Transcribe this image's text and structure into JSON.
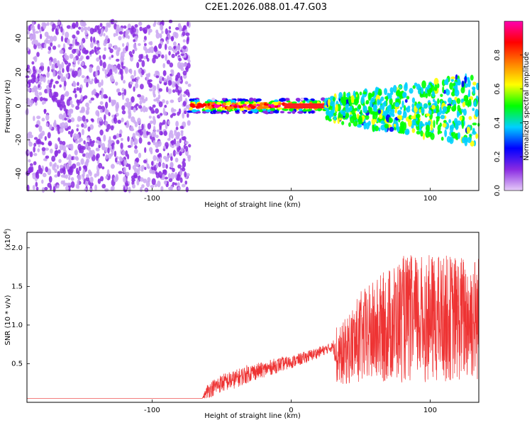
{
  "title": "C2E1.2026.088.01.47.G03",
  "chart_data": [
    {
      "type": "heatmap",
      "title": "C2E1.2026.088.01.47.G03",
      "xlabel": "Height of straight line (km)",
      "ylabel": "Frequency (Hz)",
      "xlim": [
        -190,
        135
      ],
      "ylim": [
        -50,
        50
      ],
      "xticks": [
        -100,
        0,
        100
      ],
      "yticks": [
        -40,
        -20,
        0,
        20,
        40
      ],
      "colorbar": {
        "label": "Normalized spectral amplitude",
        "range": [
          0,
          1
        ],
        "ticks": [
          "0.0",
          "0.2",
          "0.4",
          "0.6",
          "0.8"
        ],
        "colormap": [
          "#e6ccf8",
          "#8a2be2",
          "#0000ff",
          "#00d0ff",
          "#00ff00",
          "#ffff00",
          "#ff8000",
          "#ff0000",
          "#ff00b0"
        ]
      },
      "regions": [
        {
          "name": "broadband noise",
          "x_range": [
            -190,
            -73
          ],
          "freq_range": [
            -50,
            50
          ],
          "amplitude": 0.12
        },
        {
          "name": "narrow signal",
          "x_range": [
            -73,
            25
          ],
          "freq_center": 0,
          "freq_halfwidth": 4,
          "amplitude": 0.9
        },
        {
          "name": "scattered signal",
          "x_range": [
            25,
            135
          ],
          "freq_center": -2,
          "freq_halfwidth": 14,
          "amplitude": 0.3
        }
      ]
    },
    {
      "type": "line",
      "xlabel": "Height of straight line (km)",
      "ylabel": "SNR (10 * v/v)",
      "yscale_note": "(x10",
      "yscale_exp": "4",
      "xlim": [
        -190,
        135
      ],
      "ylim": [
        0,
        2.2
      ],
      "xticks": [
        -100,
        0,
        100
      ],
      "yticks": [
        "0.5",
        "1.0",
        "1.5",
        "2.0"
      ],
      "series": [
        {
          "name": "SNR",
          "color": "#ee3333",
          "x": [
            -190,
            -150,
            -100,
            -75,
            -64,
            -60,
            -50,
            -40,
            -30,
            -20,
            -10,
            0,
            10,
            20,
            30,
            35,
            40,
            50,
            60,
            70,
            80,
            90,
            100,
            110,
            120,
            130,
            135
          ],
          "y": [
            0.05,
            0.05,
            0.05,
            0.05,
            0.05,
            0.15,
            0.25,
            0.3,
            0.38,
            0.42,
            0.48,
            0.52,
            0.58,
            0.65,
            0.72,
            0.72,
            0.75,
            0.78,
            0.8,
            0.82,
            0.85,
            0.85,
            0.85,
            0.88,
            0.88,
            0.9,
            0.9
          ],
          "spread": [
            0,
            0,
            0,
            0,
            0,
            0.1,
            0.12,
            0.12,
            0.12,
            0.1,
            0.1,
            0.08,
            0.08,
            0.07,
            0.06,
            0.5,
            0.6,
            0.8,
            0.9,
            1.0,
            1.1,
            1.1,
            1.1,
            1.1,
            1.1,
            1.1,
            1.1
          ]
        }
      ]
    }
  ]
}
